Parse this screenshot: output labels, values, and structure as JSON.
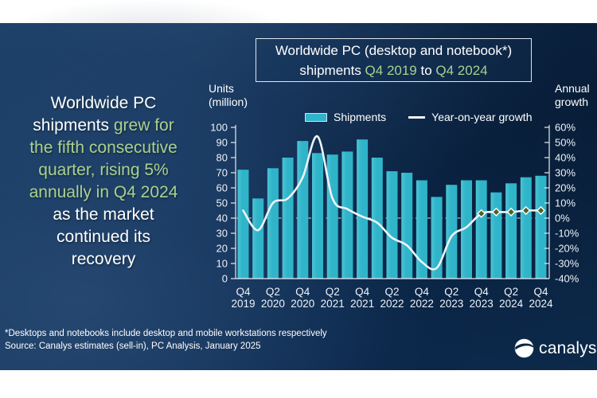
{
  "headline": {
    "lines": [
      [
        {
          "t": "Worldwide PC",
          "g": 0
        }
      ],
      [
        {
          "t": "shipments ",
          "g": 0
        },
        {
          "t": "grew for",
          "g": 1
        }
      ],
      [
        {
          "t": "the fifth consecutive",
          "g": 1
        }
      ],
      [
        {
          "t": "quarter, rising 5%",
          "g": 1
        }
      ],
      [
        {
          "t": "annually in Q4 2024",
          "g": 1
        }
      ],
      [
        {
          "t": "as the market",
          "g": 0
        }
      ],
      [
        {
          "t": "continued its",
          "g": 0
        }
      ],
      [
        {
          "t": "recovery",
          "g": 0
        }
      ]
    ]
  },
  "title_box": {
    "line1": "Worldwide PC (desktop and notebook*)",
    "line2": [
      {
        "t": "shipments ",
        "g": 0
      },
      {
        "t": "Q4 2019",
        "g": 1
      },
      {
        "t": " to ",
        "g": 0
      },
      {
        "t": "Q4 2024",
        "g": 1
      }
    ]
  },
  "legend": {
    "shipments": "Shipments",
    "growth": "Year-on-year growth"
  },
  "axis_titles": {
    "left1": "Units",
    "left2": "(million)",
    "right1": "Annual",
    "right2": "growth"
  },
  "footnote": "*Desktops and notebooks include desktop and mobile workstations respectively",
  "source": "Source: Canalys estimates (sell-in), PC Analysis, January 2025",
  "logo_text": "canalys",
  "colors": {
    "bar": "#2fb4c9",
    "bar_light": "#4cc3d4",
    "green_text": "#a9d18e",
    "growth_line": "#edf4f8",
    "marker_fill": "#4c6028",
    "axis": "#e6ecf3",
    "navy": "#0f2d50"
  },
  "chart_data": {
    "type": "bar",
    "title": "Worldwide PC (desktop and notebook*) shipments Q4 2019 to Q4 2024",
    "categories": [
      "Q4 2019",
      "Q1 2020",
      "Q2 2020",
      "Q3 2020",
      "Q4 2020",
      "Q1 2021",
      "Q2 2021",
      "Q3 2021",
      "Q4 2021",
      "Q1 2022",
      "Q2 2022",
      "Q3 2022",
      "Q4 2022",
      "Q1 2023",
      "Q2 2023",
      "Q3 2023",
      "Q4 2023",
      "Q1 2024",
      "Q2 2024",
      "Q3 2024",
      "Q4 2024"
    ],
    "series": [
      {
        "name": "Shipments",
        "type": "bar",
        "axis": "left",
        "unit": "million units",
        "values": [
          72,
          53,
          73,
          80,
          91,
          83,
          82,
          84,
          92,
          80,
          71,
          70,
          65,
          54,
          62,
          65,
          65,
          57,
          63,
          67,
          68
        ]
      },
      {
        "name": "Year-on-year growth",
        "type": "line",
        "axis": "right",
        "unit": "percent",
        "marker_last_n": 5,
        "values": [
          5,
          -8,
          10,
          13,
          27,
          54,
          13,
          6,
          1,
          -3,
          -13,
          -18,
          -29,
          -33,
          -12,
          -6,
          3,
          4,
          4,
          5,
          5
        ]
      }
    ],
    "left_axis": {
      "label": "Units (million)",
      "min": 0,
      "max": 100,
      "step": 10
    },
    "right_axis": {
      "label": "Annual growth",
      "min": -40,
      "max": 60,
      "step": 10,
      "suffix": "%"
    },
    "x_ticks": [
      {
        "i": 0,
        "q": "Q4",
        "y": "2019"
      },
      {
        "i": 2,
        "q": "Q2",
        "y": "2020"
      },
      {
        "i": 4,
        "q": "Q4",
        "y": "2020"
      },
      {
        "i": 6,
        "q": "Q2",
        "y": "2021"
      },
      {
        "i": 8,
        "q": "Q4",
        "y": "2021"
      },
      {
        "i": 10,
        "q": "Q2",
        "y": "2022"
      },
      {
        "i": 12,
        "q": "Q4",
        "y": "2022"
      },
      {
        "i": 14,
        "q": "Q2",
        "y": "2023"
      },
      {
        "i": 16,
        "q": "Q4",
        "y": "2023"
      },
      {
        "i": 18,
        "q": "Q2",
        "y": "2024"
      },
      {
        "i": 20,
        "q": "Q4",
        "y": "2024"
      }
    ],
    "zero_line": true,
    "legend_position": "top",
    "grid": false
  }
}
